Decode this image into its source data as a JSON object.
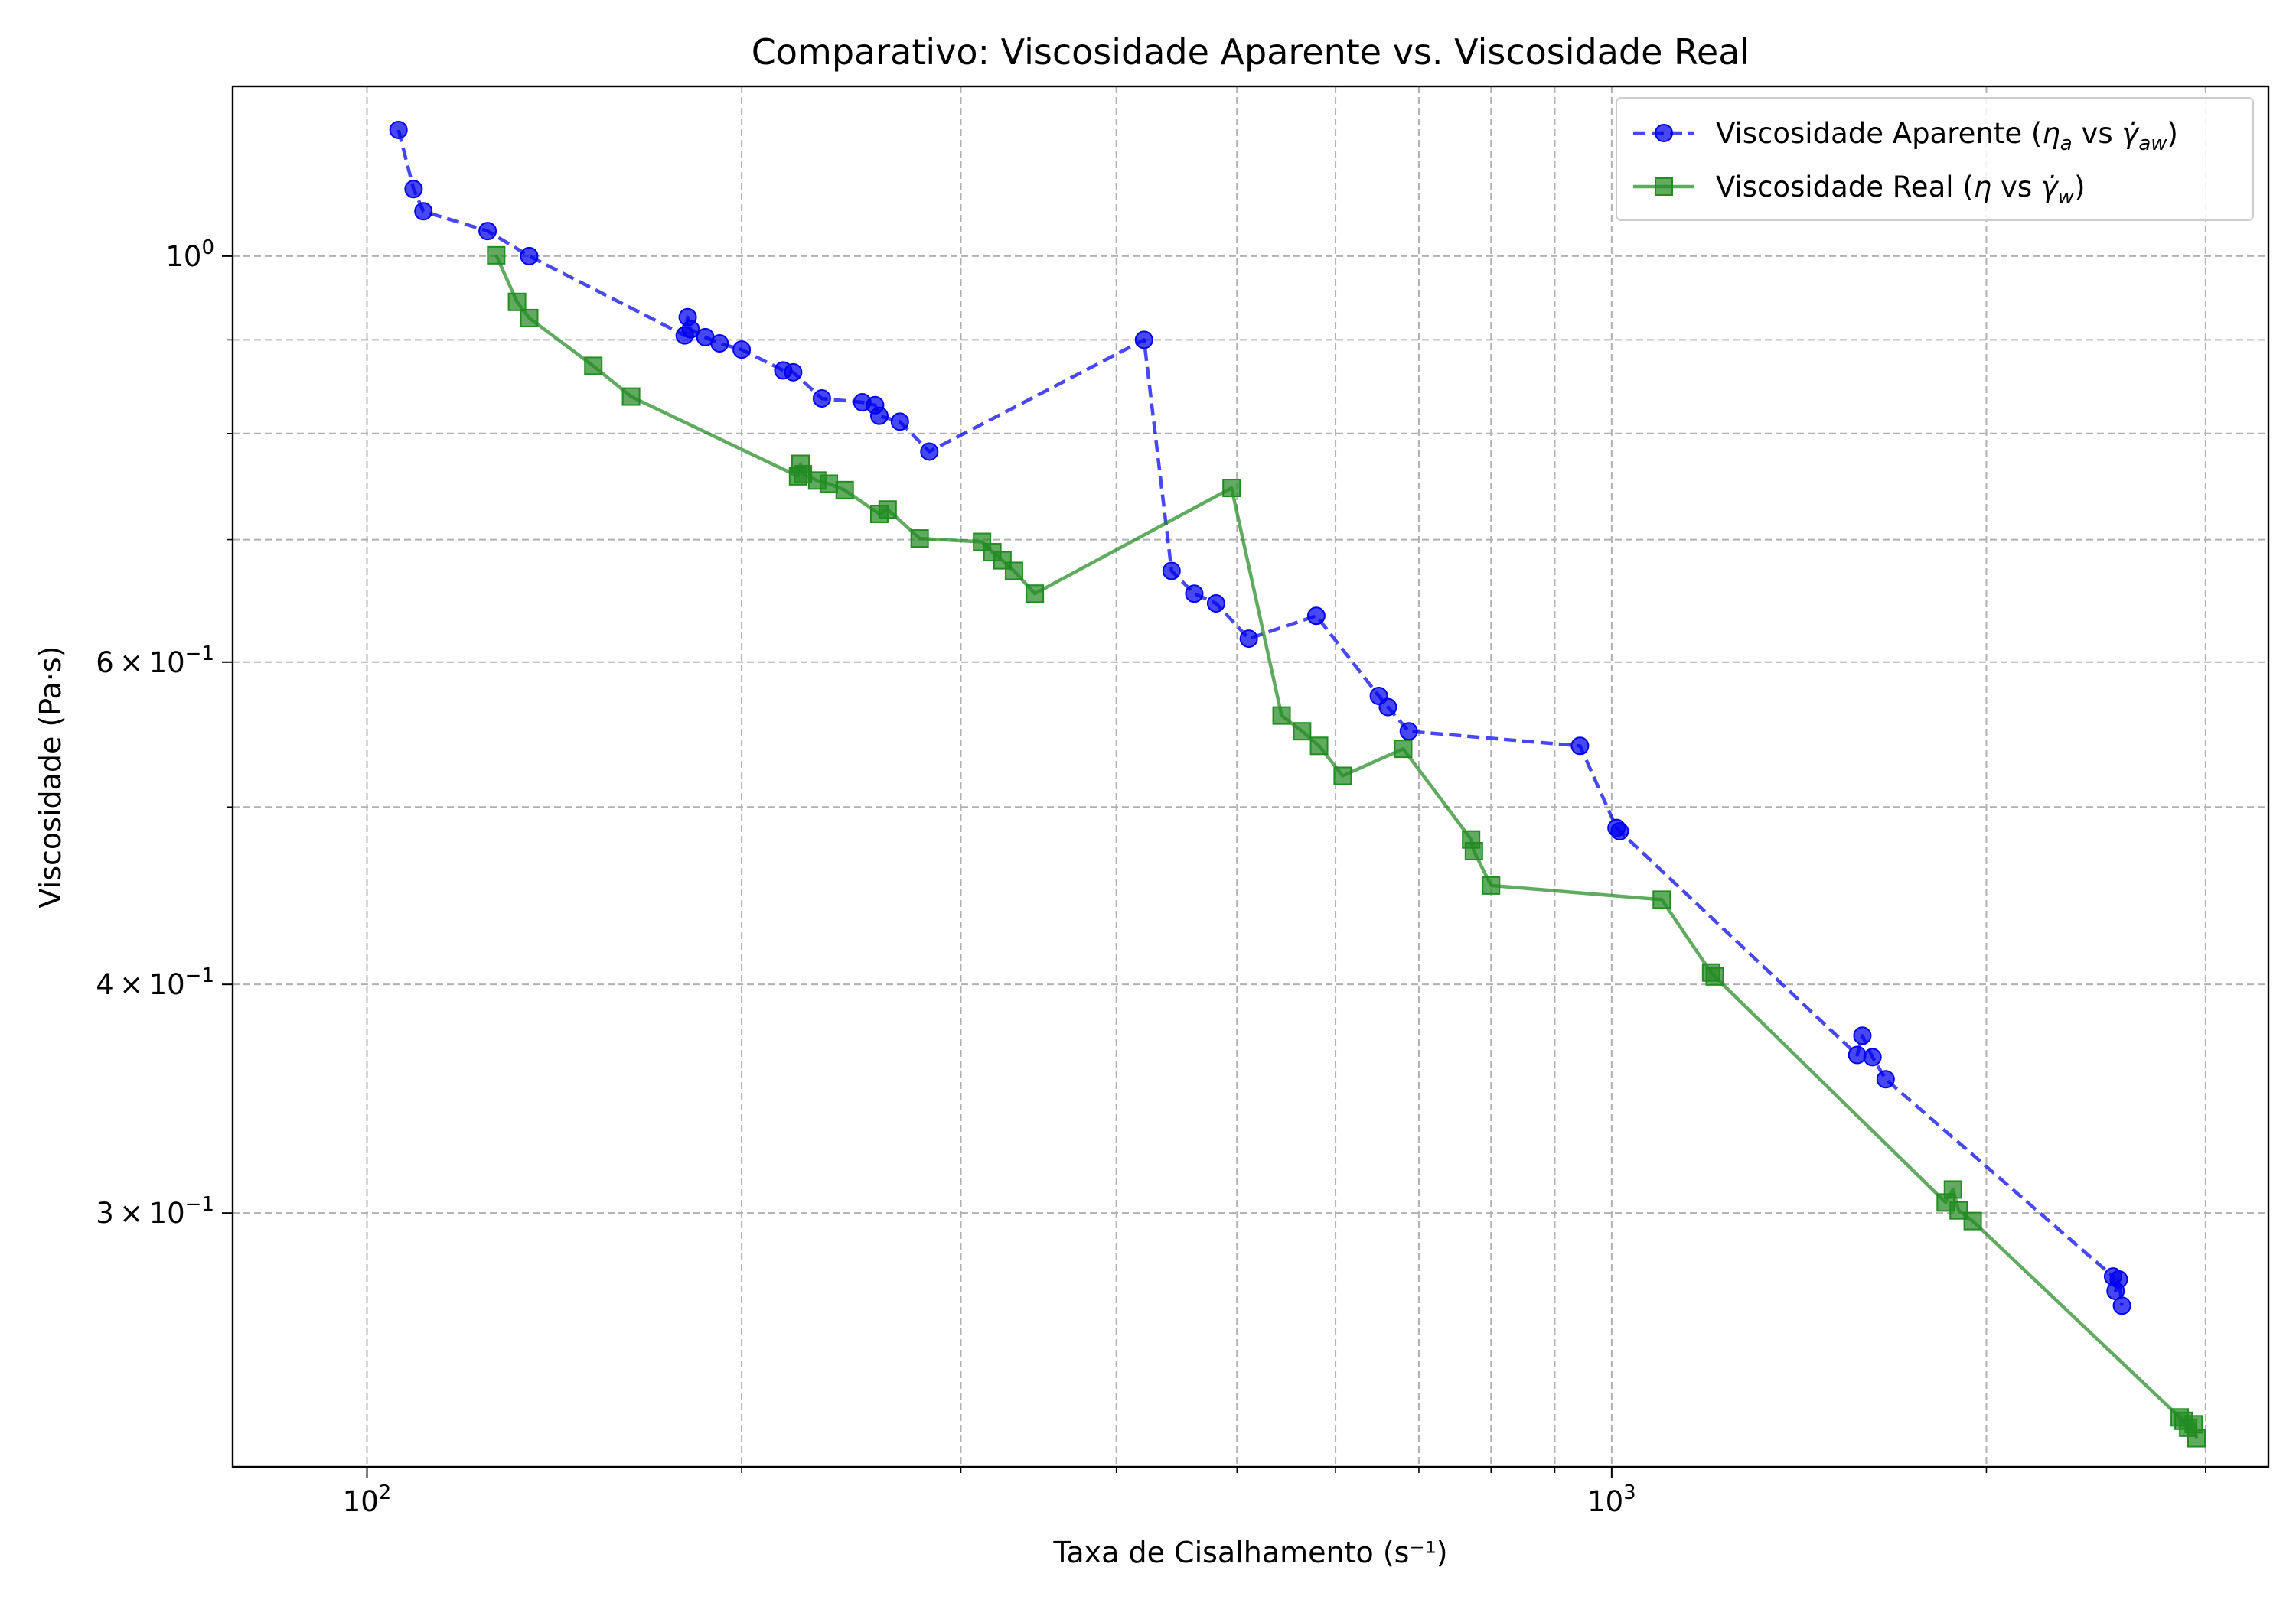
{
  "chart_data": {
    "type": "line",
    "title": "Comparativo: Viscosidade Aparente vs. Viscosidade Real",
    "xlabel": "Taxa de Cisalhamento (s⁻¹)",
    "ylabel": "Viscosidade (Pa·s)",
    "xscale": "log",
    "yscale": "log",
    "xlim": [
      78,
      3370
    ],
    "ylim": [
      0.218,
      1.238
    ],
    "grid": true,
    "legend_position": "top-right",
    "x_ticks": [
      {
        "value": 100,
        "base": "10",
        "exp": "2"
      },
      {
        "value": 1000,
        "base": "10",
        "exp": "3"
      }
    ],
    "y_ticks": [
      {
        "value": 1.0,
        "base": "10",
        "exp": "0"
      },
      {
        "value": 0.6,
        "coef": "6",
        "base": "10",
        "exp": "−1"
      },
      {
        "value": 0.4,
        "coef": "4",
        "base": "10",
        "exp": "−1"
      },
      {
        "value": 0.3,
        "coef": "3",
        "base": "10",
        "exp": "−1"
      }
    ],
    "x_minor_grid": [
      200,
      300,
      400,
      500,
      600,
      700,
      800,
      900,
      2000,
      3000
    ],
    "y_minor_grid": [
      0.5,
      0.7,
      0.8,
      0.9
    ],
    "series": [
      {
        "name": "Viscosidade Aparente (ηa vs γ̇aw)",
        "name_parts": {
          "main": "Viscosidade Aparente (",
          "sym": "η",
          "sym_sub": "a",
          "mid": " vs ",
          "rate": "γ̇",
          "rate_sub": "aw",
          "end": ")"
        },
        "color": "#0000ee",
        "marker": "circle",
        "linestyle": "dashed",
        "points": [
          [
            106,
            1.172
          ],
          [
            109,
            1.088
          ],
          [
            111,
            1.058
          ],
          [
            125,
            1.032
          ],
          [
            135,
            1.0
          ],
          [
            180,
            0.905
          ],
          [
            181,
            0.926
          ],
          [
            182,
            0.912
          ],
          [
            187,
            0.903
          ],
          [
            192,
            0.896
          ],
          [
            200,
            0.889
          ],
          [
            216,
            0.866
          ],
          [
            220,
            0.864
          ],
          [
            232,
            0.836
          ],
          [
            250,
            0.832
          ],
          [
            256,
            0.829
          ],
          [
            258,
            0.818
          ],
          [
            268,
            0.812
          ],
          [
            283,
            0.782
          ],
          [
            421,
            0.9
          ],
          [
            443,
            0.673
          ],
          [
            462,
            0.654
          ],
          [
            481,
            0.646
          ],
          [
            511,
            0.618
          ],
          [
            579,
            0.636
          ],
          [
            650,
            0.575
          ],
          [
            661,
            0.567
          ],
          [
            687,
            0.55
          ],
          [
            943,
            0.54
          ],
          [
            1009,
            0.487
          ],
          [
            1015,
            0.485
          ],
          [
            1575,
            0.366
          ],
          [
            1590,
            0.375
          ],
          [
            1620,
            0.365
          ],
          [
            1660,
            0.355
          ],
          [
            2528,
            0.277
          ],
          [
            2540,
            0.272
          ],
          [
            2555,
            0.276
          ],
          [
            2570,
            0.267
          ]
        ]
      },
      {
        "name": "Viscosidade Real (η vs γ̇w)",
        "name_parts": {
          "main": "Viscosidade Real (",
          "sym": "η",
          "sym_sub": "",
          "mid": " vs ",
          "rate": "γ̇",
          "rate_sub": "w",
          "end": ")"
        },
        "color": "#228b22",
        "marker": "square",
        "linestyle": "solid",
        "points": [
          [
            127,
            1.001
          ],
          [
            132,
            0.944
          ],
          [
            135,
            0.925
          ],
          [
            152,
            0.871
          ],
          [
            163,
            0.838
          ],
          [
            222,
            0.758
          ],
          [
            223,
            0.77
          ],
          [
            224,
            0.76
          ],
          [
            230,
            0.754
          ],
          [
            235,
            0.751
          ],
          [
            242,
            0.745
          ],
          [
            258,
            0.723
          ],
          [
            262,
            0.727
          ],
          [
            278,
            0.701
          ],
          [
            312,
            0.698
          ],
          [
            318,
            0.689
          ],
          [
            324,
            0.682
          ],
          [
            331,
            0.673
          ],
          [
            344,
            0.654
          ],
          [
            495,
            0.747
          ],
          [
            543,
            0.561
          ],
          [
            564,
            0.55
          ],
          [
            582,
            0.54
          ],
          [
            608,
            0.52
          ],
          [
            680,
            0.538
          ],
          [
            771,
            0.48
          ],
          [
            775,
            0.473
          ],
          [
            800,
            0.453
          ],
          [
            1097,
            0.445
          ],
          [
            1202,
            0.406
          ],
          [
            1210,
            0.404
          ],
          [
            1855,
            0.304
          ],
          [
            1880,
            0.309
          ],
          [
            1900,
            0.301
          ],
          [
            1950,
            0.297
          ],
          [
            2860,
            0.232
          ],
          [
            2880,
            0.231
          ],
          [
            2905,
            0.229
          ],
          [
            2935,
            0.23
          ],
          [
            2950,
            0.226
          ]
        ]
      }
    ]
  }
}
